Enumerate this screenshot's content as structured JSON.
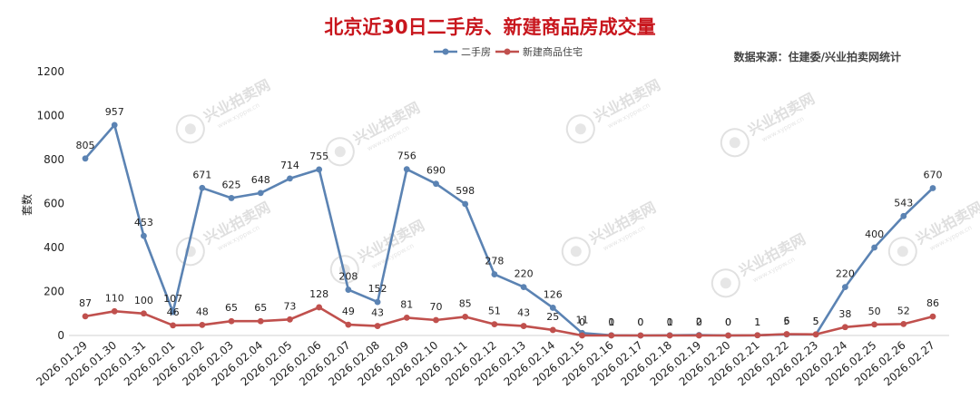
{
  "title": "北京近30日二手房、新建商品房成交量",
  "source_note": "数据来源：住建委/兴业拍卖网统计",
  "watermark": {
    "main": "兴业拍卖网",
    "sub": "www.xyppw.cn"
  },
  "colors": {
    "title": "#c8161d",
    "second_hand": "#5b83b3",
    "new_home": "#c0504d"
  },
  "chart_data": {
    "type": "line",
    "title": "北京近30日二手房、新建商品房成交量",
    "ylabel": "套数",
    "xlabel": "",
    "ylim": [
      0,
      1200
    ],
    "yticks": [
      0,
      200,
      400,
      600,
      800,
      1000,
      1200
    ],
    "grid": false,
    "legend": "top-center",
    "x": [
      "2026.01.29",
      "2026.01.30",
      "2026.01.31",
      "2026.02.01",
      "2026.02.02",
      "2026.02.03",
      "2026.02.04",
      "2026.02.05",
      "2026.02.06",
      "2026.02.07",
      "2026.02.08",
      "2026.02.09",
      "2026.02.10",
      "2026.02.11",
      "2026.02.12",
      "2026.02.13",
      "2026.02.14",
      "2026.02.15",
      "2026.02.16",
      "2026.02.17",
      "2026.02.18",
      "2026.02.19",
      "2026.02.20",
      "2026.02.21",
      "2026.02.22",
      "2026.02.23",
      "2026.02.24",
      "2026.02.25",
      "2026.02.26",
      "2026.02.27"
    ],
    "series": [
      {
        "name": "二手房",
        "values": [
          805,
          957,
          453,
          107,
          671,
          625,
          648,
          714,
          755,
          208,
          152,
          756,
          690,
          598,
          278,
          220,
          126,
          11,
          1,
          0,
          1,
          2,
          0,
          1,
          5,
          5,
          220,
          400,
          543,
          670
        ]
      },
      {
        "name": "新建商品住宅",
        "values": [
          87,
          110,
          100,
          46,
          48,
          65,
          65,
          73,
          128,
          49,
          43,
          81,
          70,
          85,
          51,
          43,
          25,
          0,
          0,
          0,
          0,
          0,
          0,
          1,
          6,
          5,
          38,
          50,
          52,
          86
        ]
      }
    ]
  }
}
